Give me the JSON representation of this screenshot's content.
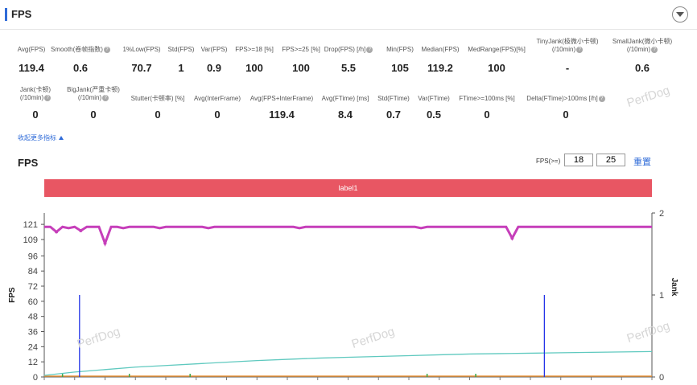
{
  "header": {
    "title": "FPS"
  },
  "metrics_row1": [
    {
      "label": "Avg(FPS)",
      "help": false,
      "value": "119.4"
    },
    {
      "label": "Smooth(卷帧指数)",
      "help": true,
      "value": "0.6"
    },
    {
      "label": "1%Low(FPS)",
      "help": false,
      "value": "70.7"
    },
    {
      "label": "Std(FPS)",
      "help": false,
      "value": "1"
    },
    {
      "label": "Var(FPS)",
      "help": false,
      "value": "0.9"
    },
    {
      "label": "FPS>=18 [%]",
      "help": false,
      "value": "100"
    },
    {
      "label": "FPS>=25 [%]",
      "help": false,
      "value": "100"
    },
    {
      "label": "Drop(FPS) [/h]",
      "help": true,
      "value": "5.5"
    },
    {
      "label": "Min(FPS)",
      "help": false,
      "value": "105"
    },
    {
      "label": "Median(FPS)",
      "help": false,
      "value": "119.2"
    },
    {
      "label": "MedRange(FPS)[%]",
      "help": false,
      "value": "100"
    },
    {
      "label": "TinyJank(极微小卡顿)",
      "label2": "(/10min)",
      "help": true,
      "value": "-"
    },
    {
      "label": "SmallJank(微小卡顿)",
      "label2": "(/10min)",
      "help": true,
      "value": "0.6"
    }
  ],
  "metrics_row2": [
    {
      "label": "Jank(卡顿)",
      "label2": "(/10min)",
      "help": true,
      "value": "0"
    },
    {
      "label": "BigJank(严重卡顿)",
      "label2": "(/10min)",
      "help": true,
      "value": "0"
    },
    {
      "label": "Stutter(卡顿率) [%]",
      "help": false,
      "value": "0"
    },
    {
      "label": "Avg(InterFrame)",
      "help": false,
      "value": "0"
    },
    {
      "label": "Avg(FPS+InterFrame)",
      "help": false,
      "value": "119.4"
    },
    {
      "label": "Avg(FTime) [ms]",
      "help": false,
      "value": "8.4"
    },
    {
      "label": "Std(FTime)",
      "help": false,
      "value": "0.7"
    },
    {
      "label": "Var(FTime)",
      "help": false,
      "value": "0.5"
    },
    {
      "label": "FTime>=100ms [%]",
      "help": false,
      "value": "0"
    },
    {
      "label": "Delta(FTime)>100ms [/h]",
      "help": true,
      "value": "0"
    }
  ],
  "more_link": "收起更多指标",
  "chart_section": {
    "title": "FPS",
    "filter_label": "FPS(>=)",
    "filter_values": [
      "18",
      "25"
    ],
    "reset_label": "重置",
    "label_bar": "label1"
  },
  "watermark": "PerfDog",
  "colors": {
    "accent": "#2f6bd8",
    "label_bar": "#e85663",
    "fps": "#c63fba",
    "jank": "#2433e8",
    "smooth": "#5fc9bf",
    "small": "#e8943a",
    "tiny": "#3aa64a"
  },
  "chart_data": {
    "type": "line",
    "ylabel": "FPS",
    "y2label": "Jank",
    "yticks": [
      0,
      12,
      24,
      36,
      48,
      60,
      72,
      84,
      96,
      109,
      121
    ],
    "ylim": [
      0,
      130
    ],
    "y2ticks": [
      0,
      1,
      2
    ],
    "y2lim": [
      0,
      2
    ],
    "xlim": [
      0,
      100
    ],
    "series": [
      {
        "values": [
          119,
          119,
          115,
          119,
          118,
          119,
          116,
          119,
          119,
          119,
          106,
          119,
          119,
          118,
          119,
          119,
          119,
          119,
          119,
          118,
          119,
          119,
          119,
          119,
          119,
          119,
          119,
          118,
          119,
          119,
          119,
          119,
          119,
          119,
          119,
          119,
          119,
          119,
          119,
          119,
          119,
          119,
          118,
          119,
          119,
          119,
          119,
          119,
          119,
          119,
          119,
          119,
          119,
          119,
          119,
          119,
          119,
          119,
          119,
          119,
          119,
          119,
          118,
          119,
          119,
          119,
          119,
          119,
          119,
          119,
          119,
          119,
          119,
          119,
          119,
          119,
          119,
          110,
          119,
          119,
          119,
          119,
          119,
          119,
          119,
          119,
          119,
          119,
          119,
          119,
          119,
          119,
          119,
          119,
          119,
          119,
          119,
          119,
          119,
          119,
          119
        ]
      },
      {
        "x": [
          5.8,
          82.3
        ],
        "values": [
          0.5,
          0.5
        ]
      },
      {
        "values": [
          0.02,
          0.06,
          0.09,
          0.12,
          0.14,
          0.16,
          0.18,
          0.2,
          0.215,
          0.23,
          0.24,
          0.25,
          0.26,
          0.27,
          0.28,
          0.285,
          0.29,
          0.295,
          0.3,
          0.305,
          0.31
        ]
      }
    ]
  }
}
